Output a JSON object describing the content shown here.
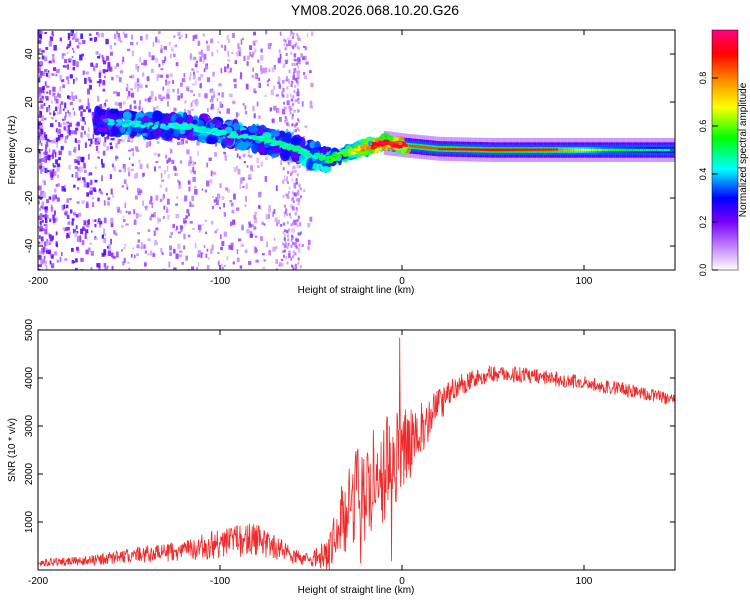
{
  "title": "YM08.2026.068.10.20.G26",
  "chart_data": [
    {
      "type": "heatmap",
      "xlabel": "Height of straight line (km)",
      "ylabel": "Frequency (Hz)",
      "xlim": [
        -200,
        150
      ],
      "ylim": [
        -50,
        50
      ],
      "xticks": [
        -200,
        -100,
        0,
        100
      ],
      "yticks": [
        -40,
        -20,
        0,
        20,
        40
      ],
      "colorbar": {
        "label": "Normalized spectral amplitude",
        "range": [
          0,
          1
        ],
        "ticks": [
          0.0,
          0.2,
          0.4,
          0.6,
          0.8
        ],
        "tick_labels": [
          "0.0",
          "0.2",
          "0.4",
          "0.6",
          "0.8"
        ],
        "colors": [
          "#ffffff",
          "#d9b3ff",
          "#7a00ff",
          "#0000ff",
          "#00ffff",
          "#00ff00",
          "#ffff00",
          "#ff8000",
          "#ff0000",
          "#ff0080"
        ]
      },
      "ridge": {
        "x": [
          -165,
          -150,
          -135,
          -120,
          -105,
          -90,
          -75,
          -60,
          -50,
          -40,
          -30,
          -20,
          -10,
          0,
          20,
          50,
          80,
          110,
          150
        ],
        "frequency": [
          12,
          11,
          10,
          10,
          8,
          6,
          4,
          1,
          -2,
          -4,
          -1,
          1,
          3,
          2,
          0.5,
          0,
          0,
          0,
          0
        ],
        "amplitude": [
          0.35,
          0.4,
          0.42,
          0.42,
          0.42,
          0.42,
          0.45,
          0.45,
          0.45,
          0.5,
          0.6,
          0.75,
          0.9,
          0.85,
          0.85,
          0.9,
          0.85,
          0.6,
          0.45
        ]
      }
    },
    {
      "type": "line",
      "xlabel": "Height of straight line (km)",
      "ylabel": "SNR (10 * v/v)",
      "xlim": [
        -200,
        150
      ],
      "ylim": [
        0,
        5000
      ],
      "xticks": [
        -200,
        -100,
        0,
        100
      ],
      "yticks": [
        1000,
        2000,
        3000,
        4000,
        5000
      ],
      "color": "#ee2a2a",
      "envelope": {
        "x": [
          -200,
          -170,
          -150,
          -120,
          -100,
          -80,
          -70,
          -60,
          -50,
          -40,
          -35,
          -30,
          -25,
          -20,
          -15,
          -10,
          -5,
          0,
          10,
          20,
          30,
          40,
          50,
          70,
          100,
          130,
          150
        ],
        "mean": [
          150,
          200,
          300,
          400,
          550,
          650,
          500,
          300,
          200,
          400,
          900,
          1300,
          1500,
          1700,
          1900,
          2100,
          2300,
          2500,
          2900,
          3400,
          3800,
          4000,
          4100,
          4050,
          3900,
          3700,
          3550
        ],
        "spread": [
          80,
          110,
          160,
          220,
          320,
          380,
          280,
          160,
          120,
          400,
          700,
          900,
          1000,
          1100,
          1100,
          1100,
          1000,
          900,
          600,
          350,
          250,
          200,
          180,
          160,
          150,
          140,
          140
        ]
      }
    }
  ]
}
